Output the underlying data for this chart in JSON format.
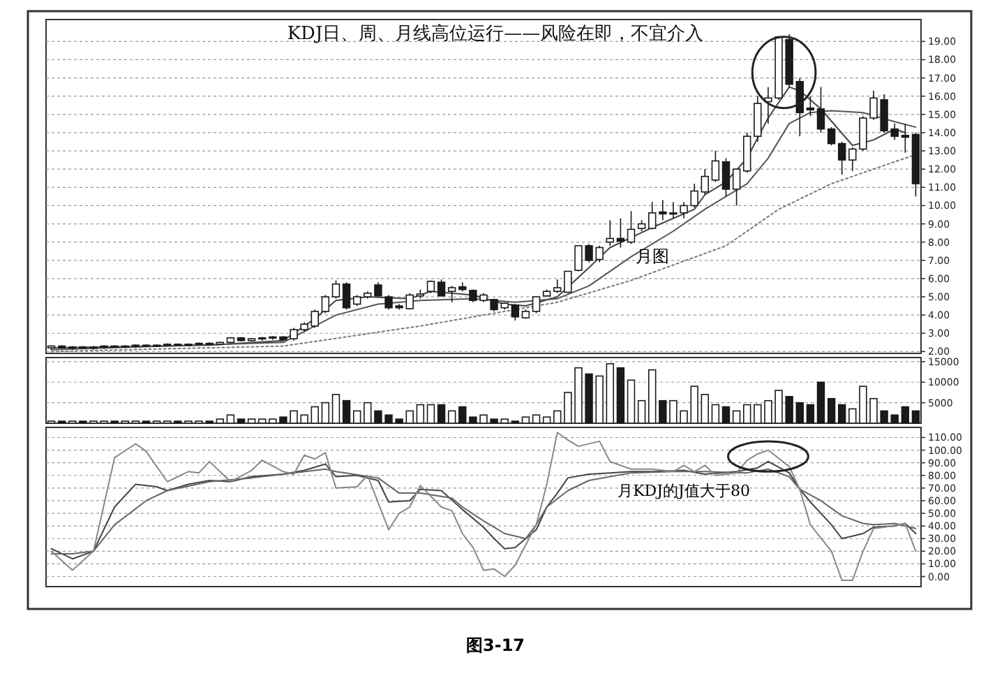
{
  "chart_data": [
    {
      "type": "candlestick",
      "title": "KDJ日、周、月线高位运行——风险在即，不宜介入",
      "annotations": [
        "月图"
      ],
      "color": "#1a1a1a",
      "grid": "y",
      "tick_labels": "y",
      "categories": [
        null,
        null,
        null,
        null,
        null,
        null,
        null,
        null,
        null,
        null,
        null,
        null,
        null,
        null,
        null,
        null,
        null,
        null,
        null,
        null,
        null,
        null,
        null,
        null,
        null,
        null,
        null,
        null,
        null,
        null,
        null,
        null,
        null,
        null,
        null,
        null,
        null,
        null,
        null,
        null,
        null,
        null,
        null,
        null,
        null,
        null,
        null,
        null,
        null,
        null,
        null,
        null,
        null,
        null,
        null,
        null,
        null,
        null,
        null,
        null,
        null,
        null,
        null,
        null,
        null,
        null,
        null,
        null,
        null,
        null,
        null,
        null,
        null,
        null,
        null,
        null,
        null,
        null,
        null,
        null,
        null,
        null,
        null
      ],
      "ohlc": [
        [
          2.2,
          2.35,
          2.1,
          2.3
        ],
        [
          2.3,
          2.35,
          2.15,
          2.2
        ],
        [
          2.2,
          2.3,
          2.1,
          2.25
        ],
        [
          2.25,
          2.3,
          2.15,
          2.2
        ],
        [
          2.2,
          2.3,
          2.1,
          2.25
        ],
        [
          2.25,
          2.35,
          2.15,
          2.3
        ],
        [
          2.3,
          2.35,
          2.2,
          2.25
        ],
        [
          2.25,
          2.35,
          2.2,
          2.3
        ],
        [
          2.3,
          2.4,
          2.2,
          2.35
        ],
        [
          2.35,
          2.4,
          2.25,
          2.3
        ],
        [
          2.3,
          2.4,
          2.25,
          2.35
        ],
        [
          2.35,
          2.45,
          2.3,
          2.4
        ],
        [
          2.4,
          2.45,
          2.3,
          2.35
        ],
        [
          2.35,
          2.45,
          2.3,
          2.4
        ],
        [
          2.4,
          2.5,
          2.35,
          2.45
        ],
        [
          2.45,
          2.5,
          2.35,
          2.4
        ],
        [
          2.4,
          2.55,
          2.35,
          2.5
        ],
        [
          2.5,
          2.8,
          2.45,
          2.75
        ],
        [
          2.75,
          2.8,
          2.55,
          2.6
        ],
        [
          2.6,
          2.75,
          2.55,
          2.7
        ],
        [
          2.7,
          2.8,
          2.6,
          2.75
        ],
        [
          2.75,
          2.85,
          2.65,
          2.8
        ],
        [
          2.8,
          2.85,
          2.6,
          2.65
        ],
        [
          2.7,
          3.3,
          2.6,
          3.2
        ],
        [
          3.2,
          3.6,
          3.1,
          3.5
        ],
        [
          3.4,
          4.3,
          3.3,
          4.2
        ],
        [
          4.2,
          5.1,
          4.1,
          5.0
        ],
        [
          5.0,
          5.9,
          4.9,
          5.7
        ],
        [
          5.7,
          5.8,
          4.3,
          4.4
        ],
        [
          4.6,
          5.1,
          4.5,
          5.0
        ],
        [
          5.0,
          5.3,
          4.9,
          5.2
        ],
        [
          5.65,
          5.8,
          5.0,
          5.05
        ],
        [
          5.0,
          5.1,
          4.3,
          4.4
        ],
        [
          4.5,
          4.6,
          4.3,
          4.4
        ],
        [
          4.35,
          5.2,
          4.3,
          5.1
        ],
        [
          5.05,
          5.4,
          4.9,
          5.15
        ],
        [
          5.3,
          5.9,
          5.2,
          5.85
        ],
        [
          5.8,
          5.95,
          5.0,
          5.05
        ],
        [
          5.3,
          5.6,
          4.7,
          5.5
        ],
        [
          5.55,
          5.8,
          5.3,
          5.4
        ],
        [
          5.35,
          5.4,
          4.7,
          4.8
        ],
        [
          4.8,
          5.2,
          4.7,
          5.1
        ],
        [
          4.85,
          4.9,
          4.2,
          4.3
        ],
        [
          4.4,
          4.7,
          4.3,
          4.65
        ],
        [
          4.55,
          4.6,
          3.7,
          3.9
        ],
        [
          3.85,
          4.3,
          3.8,
          4.2
        ],
        [
          4.2,
          5.0,
          4.1,
          5.0
        ],
        [
          5.05,
          5.4,
          5.0,
          5.3
        ],
        [
          5.3,
          5.95,
          5.2,
          5.5
        ],
        [
          5.25,
          6.4,
          5.2,
          6.4
        ],
        [
          6.45,
          7.8,
          6.4,
          7.8
        ],
        [
          7.8,
          7.9,
          6.9,
          7.0
        ],
        [
          7.05,
          7.8,
          6.9,
          7.7
        ],
        [
          8.0,
          9.2,
          7.8,
          8.2
        ],
        [
          8.2,
          9.3,
          7.7,
          8.05
        ],
        [
          8.0,
          9.7,
          7.9,
          8.7
        ],
        [
          8.75,
          9.2,
          8.6,
          9.0
        ],
        [
          8.75,
          10.2,
          8.7,
          9.6
        ],
        [
          9.65,
          10.3,
          9.2,
          9.55
        ],
        [
          9.6,
          10.2,
          9.3,
          9.6
        ],
        [
          9.6,
          10.2,
          9.3,
          10.0
        ],
        [
          10.0,
          11.2,
          9.9,
          10.8
        ],
        [
          10.75,
          12.0,
          10.6,
          11.6
        ],
        [
          11.4,
          13.0,
          11.3,
          12.45
        ],
        [
          12.4,
          12.6,
          10.5,
          10.9
        ],
        [
          10.9,
          12.0,
          10.0,
          12.0
        ],
        [
          11.9,
          14.0,
          11.8,
          13.8
        ],
        [
          13.8,
          16.0,
          13.5,
          15.6
        ],
        [
          15.7,
          16.5,
          14.5,
          15.9
        ],
        [
          15.9,
          19.3,
          15.8,
          19.25
        ],
        [
          19.1,
          19.4,
          16.5,
          16.65
        ],
        [
          16.8,
          17.0,
          13.8,
          15.1
        ],
        [
          15.35,
          16.0,
          14.9,
          15.25
        ],
        [
          15.3,
          16.5,
          14.0,
          14.2
        ],
        [
          14.2,
          14.3,
          13.3,
          13.4
        ],
        [
          13.4,
          13.5,
          11.7,
          12.5
        ],
        [
          12.5,
          13.2,
          11.9,
          13.1
        ],
        [
          13.1,
          14.9,
          13.0,
          14.8
        ],
        [
          14.8,
          16.3,
          14.7,
          15.9
        ],
        [
          15.8,
          16.1,
          14.0,
          14.1
        ],
        [
          14.2,
          14.5,
          13.6,
          13.8
        ],
        [
          13.85,
          14.5,
          12.9,
          13.75
        ],
        [
          13.9,
          14.0,
          10.5,
          11.2
        ]
      ],
      "series": [
        {
          "type": "line",
          "color": "#444444",
          "values": [
            2.2,
            null,
            null,
            null,
            null,
            null,
            null,
            null,
            null,
            null,
            null,
            null,
            null,
            null,
            null,
            2.35,
            null,
            null,
            null,
            null,
            null,
            null,
            2.6,
            null,
            null,
            3.8,
            null,
            4.8,
            null,
            null,
            5.0,
            null,
            null,
            null,
            4.9,
            null,
            5.3,
            null,
            null,
            null,
            5.1,
            null,
            null,
            4.6,
            null,
            4.5,
            null,
            null,
            5.0,
            null,
            null,
            6.6,
            null,
            7.7,
            null,
            null,
            null,
            8.8,
            null,
            null,
            null,
            9.8,
            10.6,
            null,
            11.3,
            null,
            12.6,
            null,
            14.8,
            null,
            16.5,
            16.3,
            null,
            15.3,
            null,
            null,
            13.3,
            null,
            13.6,
            null,
            14.2,
            14.0,
            null
          ]
        },
        {
          "type": "line",
          "color": "#555555",
          "values": [
            2.1,
            null,
            null,
            null,
            null,
            null,
            null,
            null,
            null,
            null,
            null,
            null,
            null,
            null,
            null,
            null,
            null,
            null,
            null,
            null,
            null,
            null,
            2.5,
            null,
            null,
            null,
            null,
            4.0,
            null,
            null,
            null,
            4.6,
            null,
            null,
            null,
            4.8,
            null,
            null,
            null,
            null,
            4.9,
            null,
            null,
            null,
            4.7,
            null,
            null,
            null,
            4.9,
            null,
            null,
            5.6,
            null,
            null,
            null,
            7.2,
            null,
            null,
            null,
            8.6,
            null,
            null,
            9.8,
            null,
            null,
            null,
            11.2,
            null,
            12.6,
            null,
            14.5,
            null,
            15.1,
            null,
            15.2,
            null,
            null,
            15.1,
            null,
            null,
            14.6,
            null,
            14.3
          ]
        },
        {
          "type": "line",
          "color": "#777777",
          "line_style": "dotted",
          "values": [
            2.0,
            null,
            null,
            null,
            null,
            null,
            null,
            null,
            null,
            null,
            null,
            null,
            null,
            null,
            null,
            null,
            null,
            null,
            null,
            null,
            null,
            null,
            2.3,
            null,
            null,
            null,
            null,
            null,
            null,
            null,
            null,
            null,
            null,
            null,
            null,
            3.4,
            null,
            null,
            null,
            null,
            null,
            null,
            null,
            null,
            null,
            null,
            null,
            null,
            4.7,
            null,
            null,
            null,
            null,
            null,
            null,
            5.9,
            null,
            null,
            null,
            null,
            null,
            null,
            null,
            null,
            7.8,
            null,
            null,
            null,
            null,
            9.8,
            null,
            null,
            null,
            null,
            11.2,
            null,
            null,
            null,
            null,
            null,
            12.4,
            null,
            12.8
          ]
        }
      ],
      "ylim": [
        1.9,
        20.2
      ],
      "yticks": [
        {
          "value": 2,
          "label": "2.00"
        },
        {
          "value": 3,
          "label": "3.00"
        },
        {
          "value": 4,
          "label": "4.00"
        },
        {
          "value": 5,
          "label": "5.00"
        },
        {
          "value": 6,
          "label": "6.00"
        },
        {
          "value": 7,
          "label": "7.00"
        },
        {
          "value": 8,
          "label": "8.00"
        },
        {
          "value": 9,
          "label": "9.00"
        },
        {
          "value": 10,
          "label": "10.00"
        },
        {
          "value": 11,
          "label": "11.00"
        },
        {
          "value": 12,
          "label": "12.00"
        },
        {
          "value": 13,
          "label": "13.00"
        },
        {
          "value": 14,
          "label": "14.00"
        },
        {
          "value": 15,
          "label": "15.00"
        },
        {
          "value": 16,
          "label": "16.00"
        },
        {
          "value": 17,
          "label": "17.00"
        },
        {
          "value": 18,
          "label": "18.00"
        },
        {
          "value": 19,
          "label": "19.00"
        }
      ]
    },
    {
      "type": "bar",
      "grid": "y",
      "tick_labels": "y",
      "categories": [
        null,
        null,
        null,
        null,
        null,
        null,
        null,
        null,
        null,
        null,
        null,
        null,
        null,
        null,
        null,
        null,
        null,
        null,
        null,
        null,
        null,
        null,
        null,
        null,
        null,
        null,
        null,
        null,
        null,
        null,
        null,
        null,
        null,
        null,
        null,
        null,
        null,
        null,
        null,
        null,
        null,
        null,
        null,
        null,
        null,
        null,
        null,
        null,
        null,
        null,
        null,
        null,
        null,
        null,
        null,
        null,
        null,
        null,
        null,
        null,
        null,
        null,
        null,
        null,
        null,
        null,
        null,
        null,
        null,
        null,
        null,
        null,
        null,
        null,
        null,
        null,
        null,
        null,
        null,
        null,
        null,
        null,
        null
      ],
      "values": [
        500,
        500,
        500,
        500,
        500,
        500,
        500,
        500,
        500,
        500,
        500,
        500,
        500,
        500,
        500,
        500,
        1000,
        2000,
        1000,
        1000,
        1000,
        1000,
        1500,
        3000,
        2000,
        4000,
        5000,
        7000,
        5500,
        3000,
        5000,
        3000,
        2000,
        1000,
        3000,
        4500,
        4500,
        4500,
        3000,
        4000,
        1500,
        2000,
        1000,
        1000,
        500,
        1500,
        2000,
        1500,
        3000,
        7500,
        13500,
        12000,
        11500,
        14500,
        13500,
        10500,
        5500,
        13000,
        5500,
        5500,
        3000,
        9000,
        7000,
        4500,
        4000,
        3000,
        4500,
        4500,
        5500,
        8000,
        6500,
        5000,
        4500,
        10000,
        6000,
        4500,
        3500,
        9000,
        6000,
        3000,
        2000,
        4000,
        3000
      ],
      "colors": [
        "#ffffff",
        "#1a1a1a",
        "#ffffff",
        "#1a1a1a",
        "#ffffff",
        "#ffffff",
        "#1a1a1a",
        "#ffffff",
        "#ffffff",
        "#1a1a1a",
        "#ffffff",
        "#ffffff",
        "#1a1a1a",
        "#ffffff",
        "#ffffff",
        "#1a1a1a",
        "#ffffff",
        "#ffffff",
        "#1a1a1a",
        "#ffffff",
        "#ffffff",
        "#ffffff",
        "#1a1a1a",
        "#ffffff",
        "#ffffff",
        "#ffffff",
        "#ffffff",
        "#ffffff",
        "#1a1a1a",
        "#ffffff",
        "#ffffff",
        "#1a1a1a",
        "#1a1a1a",
        "#1a1a1a",
        "#ffffff",
        "#ffffff",
        "#ffffff",
        "#1a1a1a",
        "#ffffff",
        "#1a1a1a",
        "#1a1a1a",
        "#ffffff",
        "#1a1a1a",
        "#ffffff",
        "#1a1a1a",
        "#ffffff",
        "#ffffff",
        "#ffffff",
        "#ffffff",
        "#ffffff",
        "#ffffff",
        "#1a1a1a",
        "#ffffff",
        "#ffffff",
        "#1a1a1a",
        "#ffffff",
        "#ffffff",
        "#ffffff",
        "#1a1a1a",
        "#ffffff",
        "#ffffff",
        "#ffffff",
        "#ffffff",
        "#ffffff",
        "#1a1a1a",
        "#ffffff",
        "#ffffff",
        "#ffffff",
        "#ffffff",
        "#ffffff",
        "#1a1a1a",
        "#1a1a1a",
        "#1a1a1a",
        "#1a1a1a",
        "#1a1a1a",
        "#1a1a1a",
        "#ffffff",
        "#ffffff",
        "#ffffff",
        "#1a1a1a",
        "#1a1a1a",
        "#1a1a1a",
        "#1a1a1a"
      ],
      "ylim": [
        0,
        16000
      ],
      "yticks": [
        5000,
        10000,
        15000
      ]
    },
    {
      "type": "line",
      "grid": "y",
      "tick_labels": "y",
      "annotations": [
        "月KDJ的J值大于80",
        "图3-17"
      ],
      "categories": [
        null,
        null,
        null,
        null,
        null,
        null,
        null,
        null,
        null,
        null,
        null,
        null,
        null,
        null,
        null,
        null,
        null,
        null,
        null,
        null,
        null,
        null,
        null,
        null,
        null,
        null,
        null,
        null,
        null,
        null,
        null,
        null,
        null,
        null,
        null,
        null,
        null,
        null,
        null,
        null,
        null,
        null,
        null,
        null,
        null,
        null,
        null,
        null,
        null,
        null,
        null,
        null,
        null,
        null,
        null,
        null,
        null,
        null,
        null,
        null,
        null,
        null,
        null,
        null,
        null,
        null,
        null,
        null,
        null,
        null,
        null,
        null,
        null,
        null,
        null,
        null,
        null,
        null,
        null,
        null,
        null,
        null,
        null
      ],
      "series": [
        {
          "color": "#444444",
          "values": [
            22,
            null,
            14,
            null,
            20,
            null,
            55,
            null,
            73,
            null,
            71,
            68,
            null,
            73,
            null,
            76,
            null,
            75,
            null,
            79,
            null,
            null,
            81,
            null,
            84,
            null,
            89,
            79,
            null,
            80,
            null,
            76,
            59,
            null,
            60,
            69,
            null,
            68,
            null,
            53,
            null,
            39,
            30,
            22,
            23,
            null,
            37,
            55,
            66,
            78,
            null,
            81,
            null,
            82,
            null,
            83,
            null,
            83,
            null,
            null,
            84,
            null,
            81,
            null,
            null,
            83,
            null,
            86,
            91,
            null,
            82,
            69,
            59,
            null,
            41,
            30,
            null,
            34,
            39,
            null,
            40,
            42,
            34
          ]
        },
        {
          "color": "#666666",
          "values": [
            18,
            null,
            18,
            null,
            20,
            null,
            41,
            null,
            null,
            60,
            null,
            68,
            null,
            null,
            null,
            75,
            null,
            null,
            null,
            78,
            null,
            null,
            81,
            null,
            null,
            null,
            85,
            83,
            null,
            null,
            null,
            78,
            null,
            66,
            null,
            66,
            null,
            null,
            62,
            55,
            null,
            44,
            39,
            34,
            null,
            30,
            41,
            55,
            null,
            68,
            null,
            76,
            null,
            null,
            null,
            82,
            null,
            null,
            null,
            83,
            null,
            null,
            83,
            null,
            null,
            null,
            82,
            null,
            85,
            null,
            79,
            69,
            null,
            60,
            null,
            48,
            null,
            42,
            41,
            null,
            42,
            null,
            38
          ]
        },
        {
          "color": "#888888",
          "values": [
            20,
            null,
            5,
            null,
            20,
            null,
            94,
            null,
            105,
            99,
            null,
            75,
            null,
            83,
            82,
            91,
            null,
            75,
            null,
            84,
            92,
            null,
            83,
            81,
            96,
            93,
            98,
            70,
            null,
            71,
            80,
            null,
            37,
            50,
            55,
            72,
            null,
            55,
            52,
            34,
            23,
            5,
            6,
            0,
            9,
            null,
            41,
            73,
            114,
            108,
            103,
            null,
            107,
            91,
            null,
            85,
            85,
            85,
            null,
            83,
            88,
            83,
            88,
            80,
            null,
            82,
            92,
            97,
            100,
            null,
            87,
            69,
            41,
            null,
            20,
            -3,
            -3,
            20,
            38,
            39,
            null,
            42,
            20
          ]
        }
      ],
      "ylim": [
        -8,
        118
      ],
      "yticks": [
        {
          "value": 0,
          "label": "0.00"
        },
        {
          "value": 10,
          "label": "10.00"
        },
        {
          "value": 20,
          "label": "20.00"
        },
        {
          "value": 30,
          "label": "30.00"
        },
        {
          "value": 40,
          "label": "40.00"
        },
        {
          "value": 50,
          "label": "50.00"
        },
        {
          "value": 60,
          "label": "60.00"
        },
        {
          "value": 70,
          "label": "70.00"
        },
        {
          "value": 80,
          "label": "80.00"
        },
        {
          "value": 90,
          "label": "90.00"
        },
        {
          "value": 100,
          "label": "100.00"
        },
        {
          "value": 110,
          "label": "110.00"
        }
      ]
    }
  ]
}
